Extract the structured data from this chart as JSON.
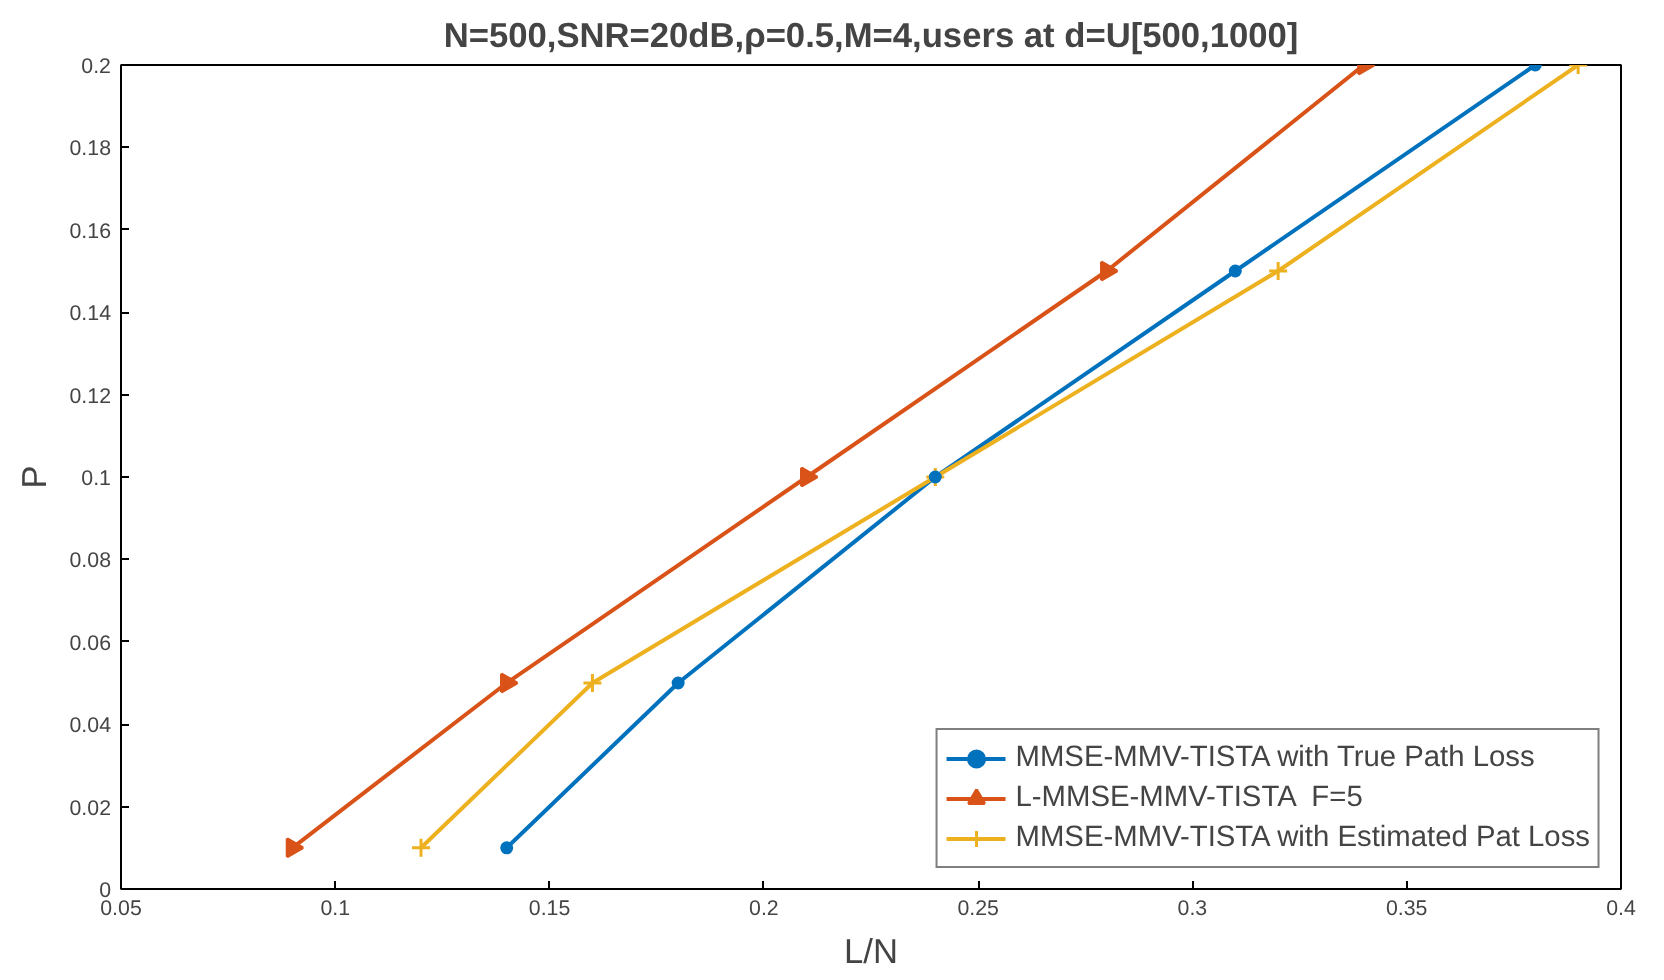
{
  "chart_data": {
    "type": "line",
    "title": "N=500,SNR=20dB,ρ=0.5,M=4,users at d=U[500,1000]",
    "xlabel": "L/N",
    "ylabel": "P",
    "series": [
      {
        "name": "MMSE-MMV-TISTA with True Path Loss",
        "color": "#0072bd",
        "marker": "circle",
        "x": [
          0.14,
          0.18,
          0.24,
          0.31,
          0.38
        ],
        "values": [
          0.01,
          0.05,
          0.1,
          0.15,
          0.2
        ]
      },
      {
        "name": "L-MMSE-MMV-TISTA  F=5",
        "color": "#d95319",
        "marker": "triangle",
        "x": [
          0.09,
          0.14,
          0.21,
          0.28,
          0.34
        ],
        "values": [
          0.01,
          0.05,
          0.1,
          0.15,
          0.2
        ]
      },
      {
        "name": "MMSE-MMV-TISTA with Estimated Pat Loss",
        "color": "#edb120",
        "marker": "cross",
        "x": [
          0.12,
          0.16,
          0.24,
          0.32,
          0.39
        ],
        "values": [
          0.01,
          0.05,
          0.1,
          0.15,
          0.2
        ]
      }
    ],
    "xlim": [
      0.05,
      0.4
    ],
    "xticks": [
      0.05,
      0.1,
      0.15,
      0.2,
      0.25,
      0.3,
      0.35,
      0.4
    ],
    "ylim": [
      0,
      0.2
    ],
    "yticks": [
      0,
      0.02,
      0.04,
      0.06,
      0.08,
      0.1,
      0.12,
      0.14,
      0.16,
      0.18,
      0.2
    ],
    "grid": false,
    "legend": "bottom right",
    "line_style": "solid"
  }
}
